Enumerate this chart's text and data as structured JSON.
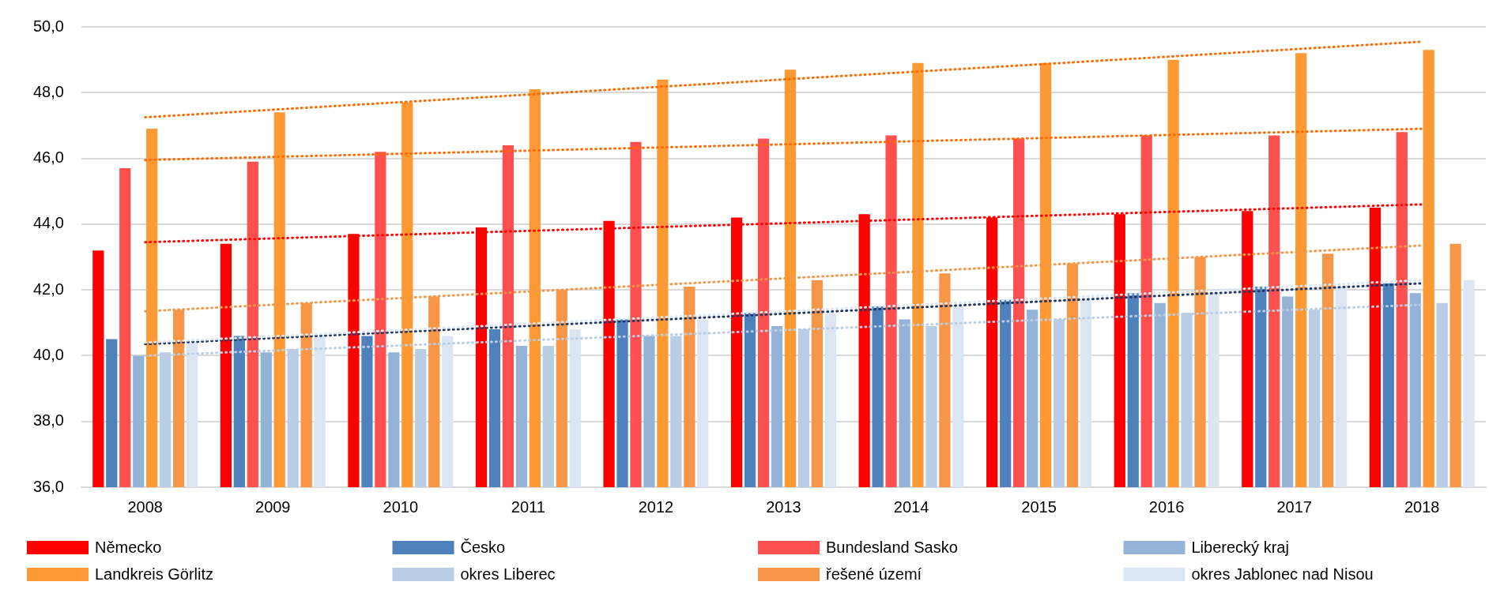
{
  "chart_data": {
    "type": "bar",
    "categories": [
      "2008",
      "2009",
      "2010",
      "2011",
      "2012",
      "2013",
      "2014",
      "2015",
      "2016",
      "2017",
      "2018"
    ],
    "ylim": [
      36,
      50
    ],
    "yticks": [
      {
        "value": 36,
        "label": "36,0"
      },
      {
        "value": 38,
        "label": "38,0"
      },
      {
        "value": 40,
        "label": "40,0"
      },
      {
        "value": 42,
        "label": "42,0"
      },
      {
        "value": 44,
        "label": "44,0"
      },
      {
        "value": 46,
        "label": "46,0"
      },
      {
        "value": 48,
        "label": "48,0"
      },
      {
        "value": 50,
        "label": "50,0"
      }
    ],
    "grid": "y",
    "legend": "bottom",
    "marker": "none",
    "series": [
      {
        "name": "Německo",
        "color": "#ff0000",
        "values": [
          43.2,
          43.4,
          43.7,
          43.9,
          44.1,
          44.2,
          44.3,
          44.2,
          44.3,
          44.4,
          44.5
        ]
      },
      {
        "name": "Česko",
        "color": "#4f81bd",
        "values": [
          40.5,
          40.6,
          40.6,
          40.8,
          41.1,
          41.3,
          41.5,
          41.7,
          41.9,
          42.1,
          42.2
        ]
      },
      {
        "name": "Bundesland Sasko",
        "color": "#ff5050",
        "values": [
          45.7,
          45.9,
          46.2,
          46.4,
          46.5,
          46.6,
          46.7,
          46.6,
          46.7,
          46.7,
          46.8
        ]
      },
      {
        "name": "Liberecký kraj",
        "color": "#95b3d7",
        "values": [
          40.0,
          40.1,
          40.1,
          40.3,
          40.6,
          40.9,
          41.1,
          41.4,
          41.6,
          41.8,
          41.9
        ]
      },
      {
        "name": "Landkreis Görlitz",
        "color": "#ff9933",
        "values": [
          46.9,
          47.4,
          47.7,
          48.1,
          48.4,
          48.7,
          48.9,
          48.9,
          49.0,
          49.2,
          49.3
        ]
      },
      {
        "name": "okres Liberec",
        "color": "#b9cde5",
        "values": [
          40.1,
          40.2,
          40.2,
          40.3,
          40.6,
          40.8,
          40.9,
          41.1,
          41.3,
          41.4,
          41.6
        ]
      },
      {
        "name": "řešené území",
        "color": "#f79646",
        "values": [
          41.4,
          41.6,
          41.8,
          42.0,
          42.1,
          42.3,
          42.5,
          42.8,
          43.0,
          43.1,
          43.4
        ]
      },
      {
        "name": "okres Jablonec nad Nisou",
        "color": "#dce6f2",
        "values": [
          40.4,
          40.6,
          40.6,
          40.8,
          41.1,
          41.3,
          41.5,
          41.7,
          41.9,
          42.1,
          42.3
        ]
      },
      {
        "type": "line",
        "line_style": "dotted",
        "color": "#ff6a00",
        "values": [
          47.25,
          null,
          null,
          null,
          null,
          null,
          null,
          null,
          null,
          null,
          49.55
        ]
      },
      {
        "type": "line",
        "line_style": "dotted",
        "color": "#ff6a00",
        "values": [
          45.95,
          null,
          null,
          null,
          null,
          null,
          null,
          null,
          null,
          null,
          46.9
        ]
      },
      {
        "type": "line",
        "line_style": "dotted",
        "color": "#ff0000",
        "values": [
          43.45,
          null,
          null,
          null,
          null,
          null,
          null,
          null,
          null,
          null,
          44.6
        ]
      },
      {
        "type": "line",
        "line_style": "dotted",
        "color": "#f79646",
        "values": [
          41.35,
          null,
          null,
          null,
          null,
          null,
          null,
          null,
          null,
          null,
          43.35
        ]
      },
      {
        "type": "line",
        "line_style": "dotted",
        "color": "#dce6f2",
        "values": [
          40.4,
          null,
          null,
          null,
          null,
          null,
          null,
          null,
          null,
          null,
          42.3
        ]
      },
      {
        "type": "line",
        "line_style": "dotted",
        "color": "#203864",
        "values": [
          40.35,
          null,
          null,
          null,
          null,
          null,
          null,
          null,
          null,
          null,
          42.2
        ]
      },
      {
        "type": "line",
        "line_style": "dotted",
        "color": "#b9cde5",
        "values": [
          40.0,
          null,
          null,
          null,
          null,
          null,
          null,
          null,
          null,
          null,
          41.55
        ]
      }
    ]
  }
}
